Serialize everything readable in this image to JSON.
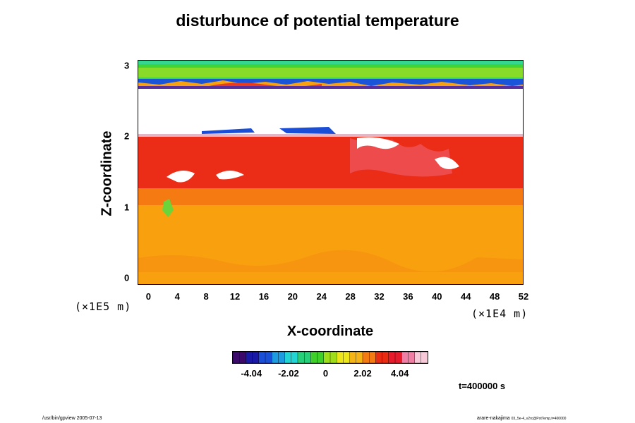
{
  "chart_data": {
    "type": "heatmap",
    "title": "disturbunce of potential temperature",
    "xlabel": "X-coordinate",
    "ylabel": "Z-coordinate",
    "x_unit": "(×1E4 m)",
    "y_unit": "(×1E5 m)",
    "xlim": [
      -1.5,
      52
    ],
    "ylim": [
      -0.1,
      3.08
    ],
    "x_ticks": [
      "0",
      "4",
      "8",
      "12",
      "16",
      "20",
      "24",
      "28",
      "32",
      "36",
      "40",
      "44",
      "48",
      "52"
    ],
    "y_ticks": [
      "0",
      "1",
      "2",
      "3"
    ],
    "colorbar": {
      "range": [
        -5.05,
        5.55
      ],
      "tick_labels": [
        "-4.04",
        "-2.02",
        "0",
        "2.02",
        "4.04"
      ],
      "colors": [
        "#3b0a6b",
        "#1a1aa6",
        "#1a4fd8",
        "#1f9be0",
        "#22d4d4",
        "#27cf7a",
        "#3fd02a",
        "#9fdc1a",
        "#ece61a",
        "#f5b516",
        "#f47a12",
        "#ea2c12",
        "#e61b2b",
        "#f07fa6",
        "#f6c8d8"
      ]
    },
    "regions": [
      {
        "z_range": [
          -0.1,
          1.05
        ],
        "approx_value": 3.2,
        "color": "#fa9e0d"
      },
      {
        "z_range": [
          1.05,
          1.35
        ],
        "approx_value": 3.6,
        "color": "#f66b12"
      },
      {
        "z_range": [
          1.35,
          2.02
        ],
        "approx_value": 4.3,
        "color": "#ea2916"
      },
      {
        "z_range": [
          2.02,
          2.65
        ],
        "approx_value": "above range",
        "color": "#ffffff"
      },
      {
        "z_range": [
          2.65,
          3.08
        ],
        "approx_value": 0.8,
        "color": "#52da2e"
      }
    ],
    "time_label": "t=400000 s"
  },
  "footer": {
    "left": "/usr/bin/gpview 2005-07-13",
    "right": "arare-nakajima",
    "right_small": "03_5e-4_v2rc@PotTemp,t=400000"
  }
}
